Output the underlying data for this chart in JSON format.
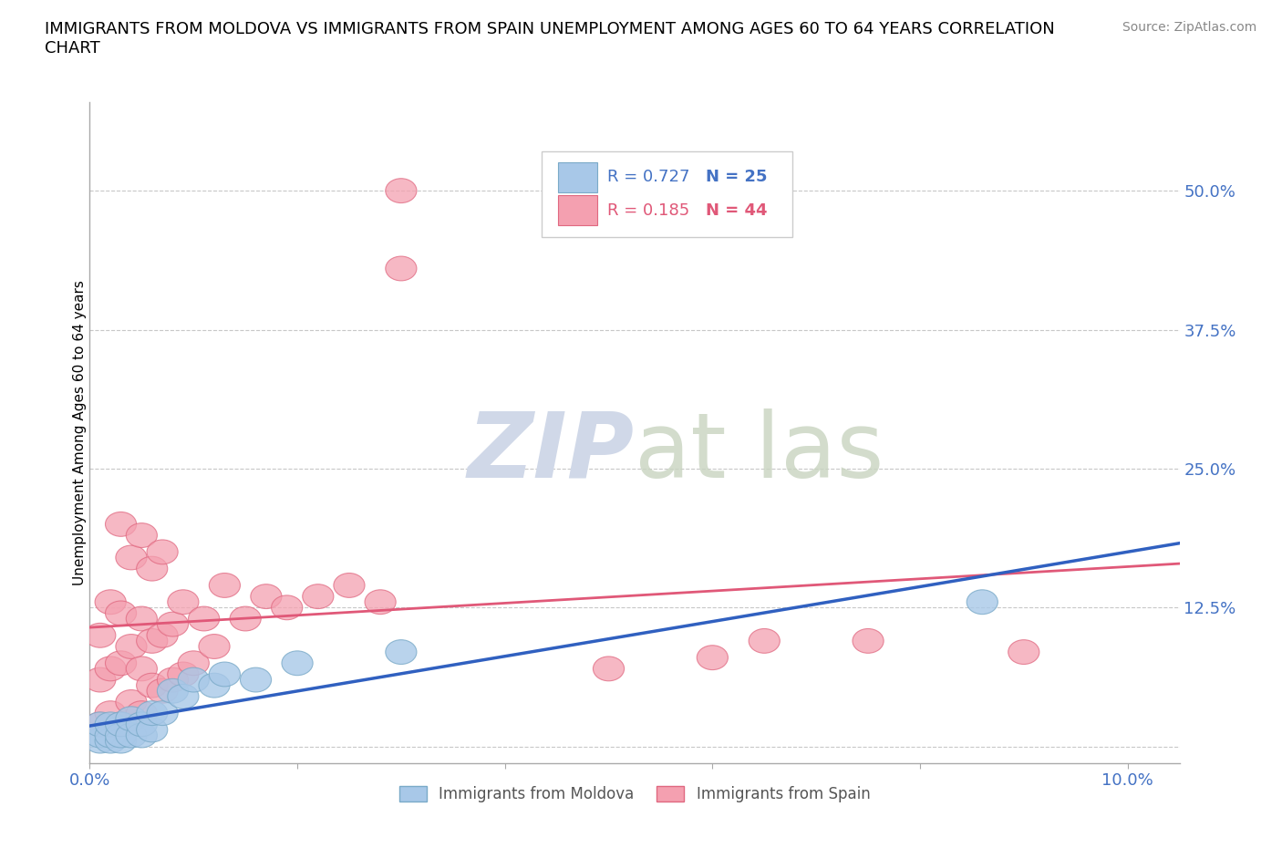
{
  "title": "IMMIGRANTS FROM MOLDOVA VS IMMIGRANTS FROM SPAIN UNEMPLOYMENT AMONG AGES 60 TO 64 YEARS CORRELATION\nCHART",
  "source_text": "Source: ZipAtlas.com",
  "ylabel": "Unemployment Among Ages 60 to 64 years",
  "xlim": [
    0.0,
    0.105
  ],
  "ylim": [
    -0.015,
    0.58
  ],
  "yticks": [
    0.0,
    0.125,
    0.25,
    0.375,
    0.5
  ],
  "ytick_labels": [
    "",
    "12.5%",
    "25.0%",
    "37.5%",
    "50.0%"
  ],
  "xticks": [
    0.0,
    0.02,
    0.04,
    0.06,
    0.08,
    0.1
  ],
  "xtick_labels": [
    "0.0%",
    "",
    "",
    "",
    "",
    "10.0%"
  ],
  "moldova_color": "#a8c8e8",
  "moldova_edge": "#7aaac8",
  "spain_color": "#f4a0b0",
  "spain_edge": "#e06880",
  "regression_moldova_color": "#3060c0",
  "regression_spain_color": "#e05878",
  "moldova_R": 0.727,
  "moldova_N": 25,
  "spain_R": 0.185,
  "spain_N": 44,
  "tick_color": "#4472c4",
  "legend_color_moldova": "#0070c0",
  "legend_color_spain": "#e05878",
  "background_color": "#ffffff",
  "grid_color": "#c8c8c8",
  "moldova_x": [
    0.001,
    0.001,
    0.001,
    0.002,
    0.002,
    0.002,
    0.003,
    0.003,
    0.003,
    0.004,
    0.004,
    0.005,
    0.005,
    0.006,
    0.006,
    0.007,
    0.008,
    0.009,
    0.01,
    0.012,
    0.013,
    0.016,
    0.02,
    0.03,
    0.086
  ],
  "moldova_y": [
    0.005,
    0.01,
    0.02,
    0.005,
    0.01,
    0.02,
    0.005,
    0.01,
    0.02,
    0.01,
    0.025,
    0.01,
    0.02,
    0.015,
    0.03,
    0.03,
    0.05,
    0.045,
    0.06,
    0.055,
    0.065,
    0.06,
    0.075,
    0.085,
    0.13
  ],
  "spain_x": [
    0.001,
    0.001,
    0.001,
    0.002,
    0.002,
    0.002,
    0.003,
    0.003,
    0.003,
    0.003,
    0.004,
    0.004,
    0.004,
    0.005,
    0.005,
    0.005,
    0.005,
    0.006,
    0.006,
    0.006,
    0.007,
    0.007,
    0.007,
    0.008,
    0.008,
    0.009,
    0.009,
    0.01,
    0.011,
    0.012,
    0.013,
    0.015,
    0.017,
    0.019,
    0.022,
    0.025,
    0.028,
    0.03,
    0.03,
    0.05,
    0.06,
    0.065,
    0.075,
    0.09
  ],
  "spain_y": [
    0.02,
    0.06,
    0.1,
    0.03,
    0.07,
    0.13,
    0.02,
    0.075,
    0.12,
    0.2,
    0.04,
    0.09,
    0.17,
    0.03,
    0.07,
    0.115,
    0.19,
    0.055,
    0.095,
    0.16,
    0.05,
    0.1,
    0.175,
    0.06,
    0.11,
    0.065,
    0.13,
    0.075,
    0.115,
    0.09,
    0.145,
    0.115,
    0.135,
    0.125,
    0.135,
    0.145,
    0.13,
    0.43,
    0.5,
    0.07,
    0.08,
    0.095,
    0.095,
    0.085
  ],
  "watermark_color": "#d0d8e8",
  "title_fontsize": 13
}
